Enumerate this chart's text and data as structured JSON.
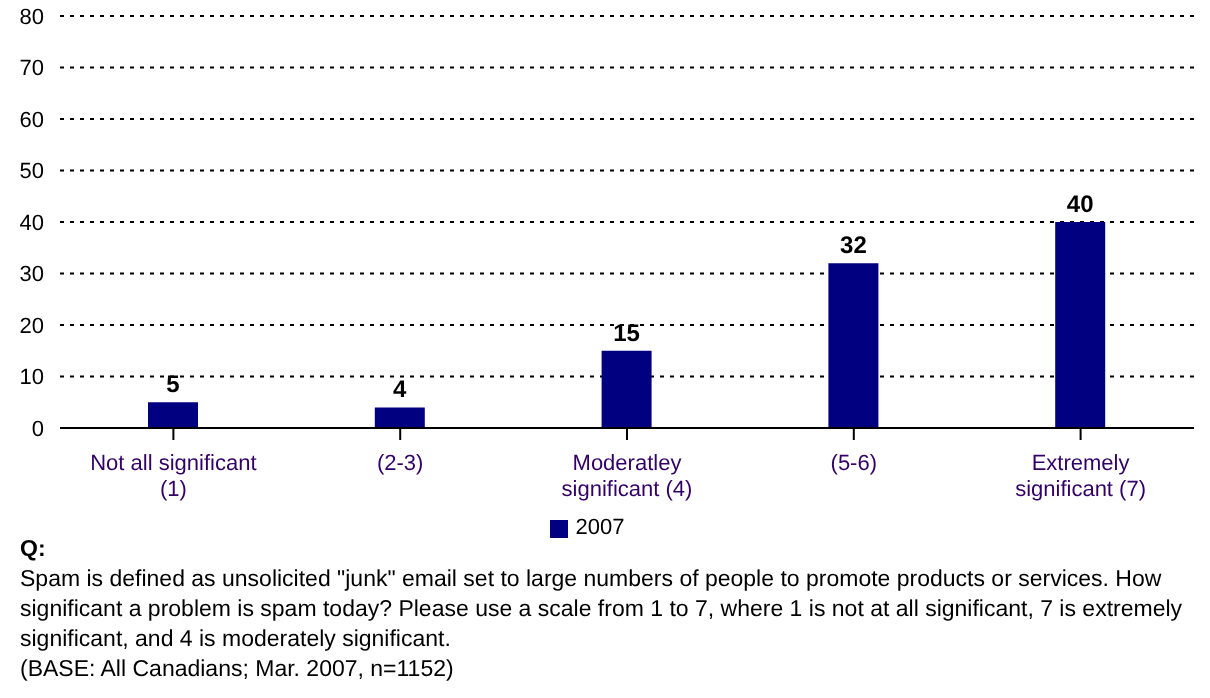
{
  "chart_data": {
    "type": "bar",
    "categories": [
      "Not all significant\n(1)",
      "(2-3)",
      "Moderatley\nsignificant (4)",
      "(5-6)",
      "Extremely\nsignificant (7)"
    ],
    "series": [
      {
        "name": "2007",
        "color": "#000080",
        "values": [
          5,
          4,
          15,
          32,
          40
        ]
      }
    ],
    "ylim": [
      0,
      80
    ],
    "yticks": [
      0,
      10,
      20,
      30,
      40,
      50,
      60,
      70,
      80
    ],
    "grid": "y",
    "legend": "bottom",
    "data_labels": true,
    "annotations": [
      "Q:",
      "Spam is defined as unsolicited \"junk\" email set to large numbers of people to promote products or services. How significant a problem is spam today? Please use a scale from 1 to 7, where 1 is not at all significant, 7 is extremely significant, and 4 is moderately significant.",
      "(BASE:  All Canadians; Mar. 2007, n=1152)"
    ]
  }
}
